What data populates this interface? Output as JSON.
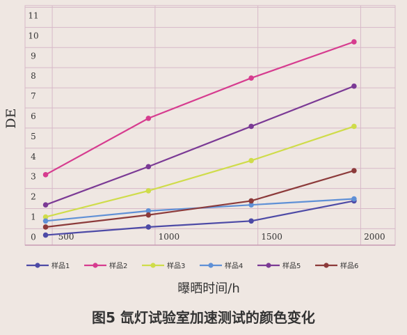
{
  "chart_data": {
    "type": "line",
    "title": "",
    "xlabel": "曝晒时间/h",
    "ylabel": "DE",
    "x": [
      400,
      900,
      1400,
      1900
    ],
    "xlim": [
      300,
      2100
    ],
    "ylim": [
      -0.4,
      11.5
    ],
    "x_ticks": [
      500,
      1000,
      1500,
      2000
    ],
    "y_ticks": [
      0,
      1,
      2,
      3,
      4,
      5,
      6,
      7,
      8,
      9,
      10,
      11
    ],
    "grid": true,
    "legend_position": "bottom",
    "series": [
      {
        "name": "样品1",
        "color": "#4d4aa6",
        "values": [
          0.1,
          0.5,
          0.8,
          1.8
        ]
      },
      {
        "name": "样品2",
        "color": "#d63c8f",
        "values": [
          3.1,
          5.9,
          7.9,
          9.7
        ]
      },
      {
        "name": "样品3",
        "color": "#cfdc4a",
        "values": [
          1.0,
          2.3,
          3.8,
          5.5
        ]
      },
      {
        "name": "样品4",
        "color": "#5f90d6",
        "values": [
          0.8,
          1.3,
          1.6,
          1.9
        ]
      },
      {
        "name": "样品5",
        "color": "#7b3a95",
        "values": [
          1.6,
          3.5,
          5.5,
          7.5
        ]
      },
      {
        "name": "样品6",
        "color": "#8c3a3a",
        "values": [
          0.5,
          1.1,
          1.8,
          3.3
        ]
      }
    ]
  },
  "caption": "图5  氙灯试验室加速测试的颜色变化"
}
